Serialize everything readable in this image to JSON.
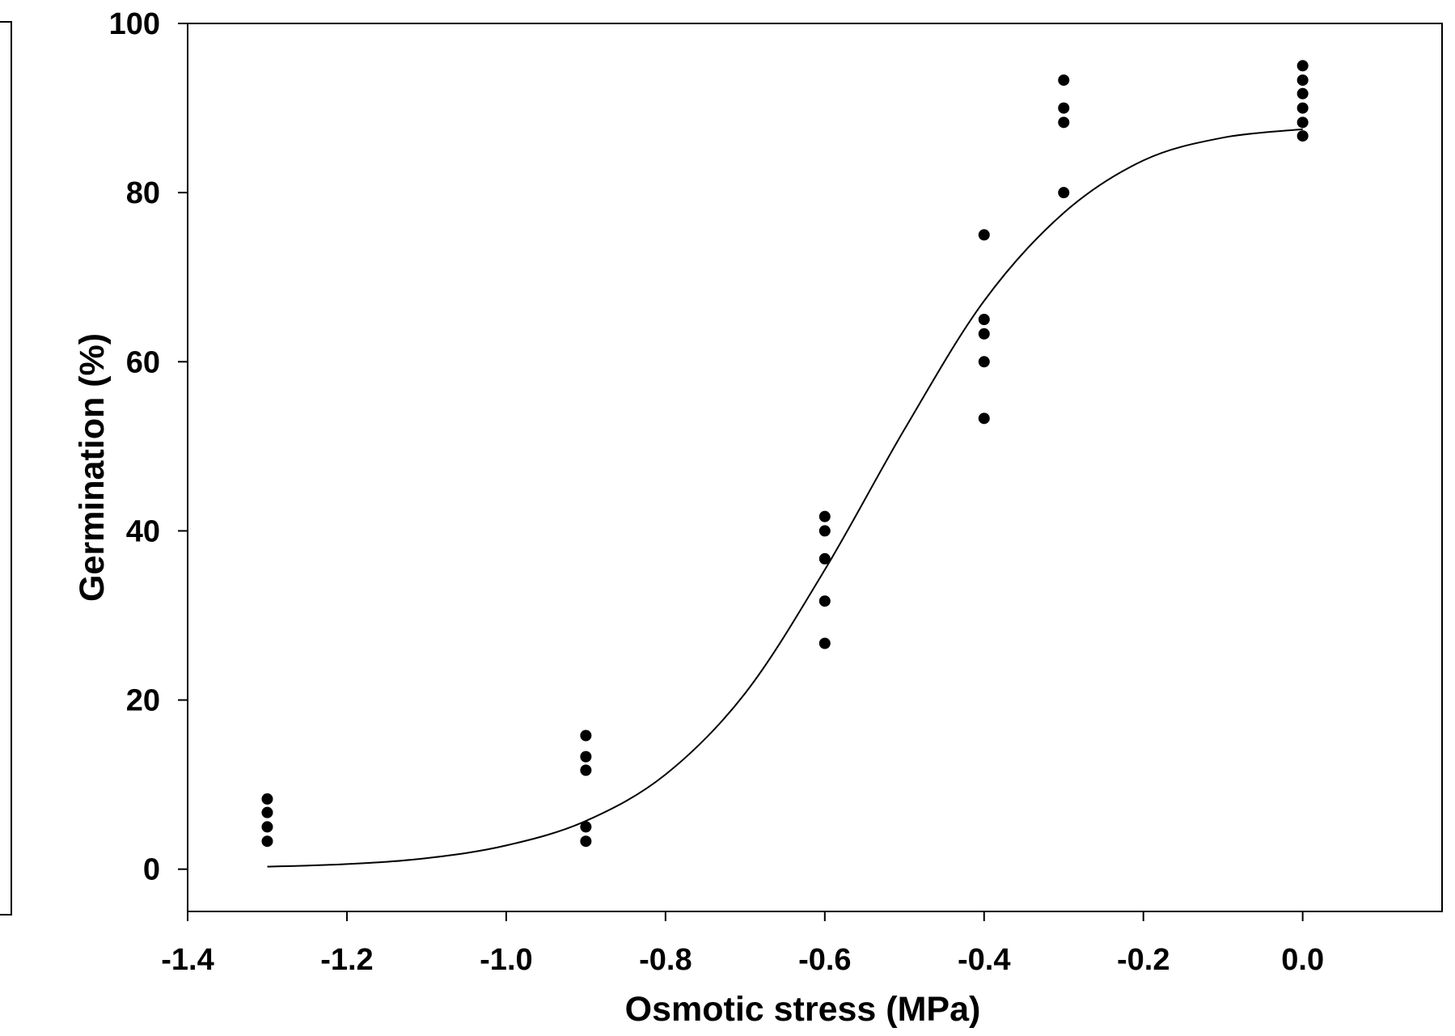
{
  "chart_data": {
    "type": "scatter",
    "title": "",
    "xlabel": "Osmotic stress (MPa)",
    "ylabel": "Germination (%)",
    "xlim": [
      -1.4,
      0.175
    ],
    "ylim": [
      -5,
      100
    ],
    "xticks": [
      -1.4,
      -1.2,
      -1.0,
      -0.8,
      -0.6,
      -0.4,
      -0.2,
      0.0
    ],
    "xtick_labels": [
      "-1.4",
      "-1.2",
      "-1.0",
      "-0.8",
      "-0.6",
      "-0.4",
      "-0.2",
      "0.0"
    ],
    "yticks": [
      0,
      20,
      40,
      60,
      80,
      100
    ],
    "ytick_labels": [
      "0",
      "20",
      "40",
      "60",
      "80",
      "100"
    ],
    "grid": false,
    "legend": "none",
    "series": [
      {
        "type": "scatter",
        "color": "#000000",
        "points": [
          {
            "x": -1.3,
            "y": 8.3
          },
          {
            "x": -1.3,
            "y": 6.7
          },
          {
            "x": -1.3,
            "y": 5.0
          },
          {
            "x": -1.3,
            "y": 3.3
          },
          {
            "x": -0.9,
            "y": 15.8
          },
          {
            "x": -0.9,
            "y": 13.3
          },
          {
            "x": -0.9,
            "y": 11.7
          },
          {
            "x": -0.9,
            "y": 5.0
          },
          {
            "x": -0.9,
            "y": 3.3
          },
          {
            "x": -0.6,
            "y": 41.7
          },
          {
            "x": -0.6,
            "y": 40.0
          },
          {
            "x": -0.6,
            "y": 36.7
          },
          {
            "x": -0.6,
            "y": 31.7
          },
          {
            "x": -0.6,
            "y": 26.7
          },
          {
            "x": -0.4,
            "y": 75.0
          },
          {
            "x": -0.4,
            "y": 65.0
          },
          {
            "x": -0.4,
            "y": 63.3
          },
          {
            "x": -0.4,
            "y": 60.0
          },
          {
            "x": -0.4,
            "y": 53.3
          },
          {
            "x": -0.3,
            "y": 93.3
          },
          {
            "x": -0.3,
            "y": 90.0
          },
          {
            "x": -0.3,
            "y": 88.3
          },
          {
            "x": -0.3,
            "y": 80.0
          },
          {
            "x": 0.0,
            "y": 95.0
          },
          {
            "x": 0.0,
            "y": 93.3
          },
          {
            "x": 0.0,
            "y": 91.7
          },
          {
            "x": 0.0,
            "y": 90.0
          },
          {
            "x": 0.0,
            "y": 88.3
          },
          {
            "x": 0.0,
            "y": 86.7
          }
        ]
      },
      {
        "type": "line",
        "color": "#000000",
        "x": [
          -1.3,
          -1.2,
          -1.1,
          -1.0,
          -0.9,
          -0.8,
          -0.7,
          -0.6,
          -0.5,
          -0.4,
          -0.3,
          -0.2,
          -0.1,
          0.0
        ],
        "y": [
          0.3,
          0.6,
          1.3,
          2.8,
          5.7,
          11.2,
          20.8,
          35.4,
          52.0,
          67.2,
          77.6,
          83.8,
          86.5,
          87.5
        ]
      }
    ]
  }
}
